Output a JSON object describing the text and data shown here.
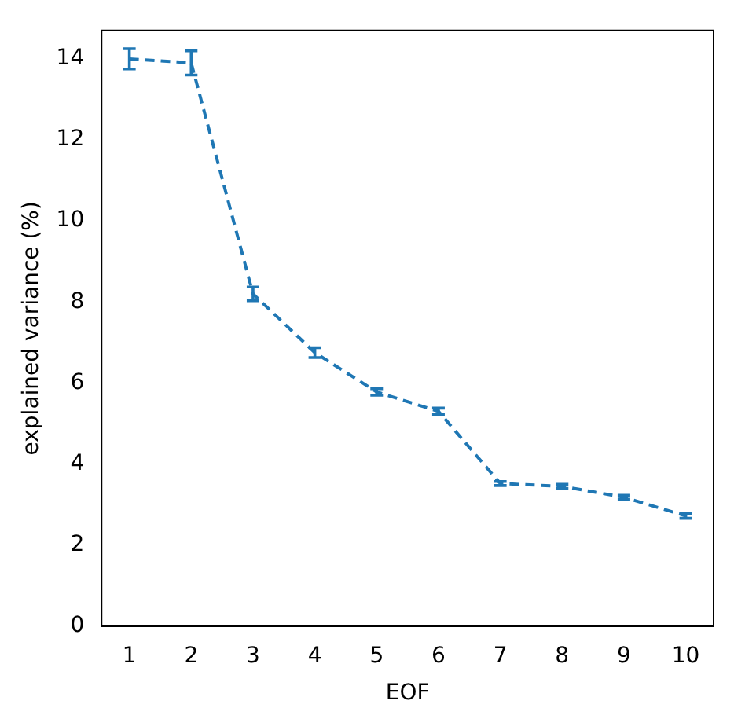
{
  "chart_data": {
    "type": "line",
    "xlabel": "EOF",
    "ylabel": "explained variance (%)",
    "x": [
      1,
      2,
      3,
      4,
      5,
      6,
      7,
      8,
      9,
      10
    ],
    "series": [
      {
        "color": "#1f77b4",
        "values": [
          14.0,
          13.9,
          8.2,
          6.75,
          5.78,
          5.3,
          3.52,
          3.45,
          3.18,
          2.72
        ],
        "errors": [
          0.25,
          0.3,
          0.17,
          0.12,
          0.08,
          0.08,
          0.05,
          0.05,
          0.05,
          0.06
        ]
      }
    ],
    "xlim": [
      0.55,
      10.45
    ],
    "xticks": [
      1,
      2,
      3,
      4,
      5,
      6,
      7,
      8,
      9,
      10
    ],
    "ylim": [
      0,
      14.7
    ],
    "yticks": [
      0,
      2,
      4,
      6,
      8,
      10,
      12,
      14
    ],
    "grid": false,
    "legend": false,
    "marker": "none",
    "line_style": "dashed"
  }
}
